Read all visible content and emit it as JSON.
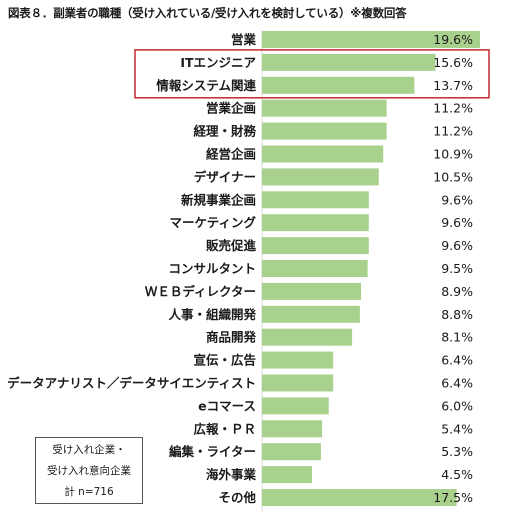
{
  "title": "図表８．副業者の職種（受け入れている/受け入れを検討している）※複数回答",
  "note": [
    "受け入れ企業・",
    "受け入れ意向企業",
    "計 n=716"
  ],
  "highlight_color": "#c0292e",
  "bar_color": "#a9d18e",
  "chart_data": {
    "type": "bar",
    "orientation": "horizontal",
    "categories": [
      "営業",
      "ITエンジニア",
      "情報システム関連",
      "営業企画",
      "経理・財務",
      "経営企画",
      "デザイナー",
      "新規事業企画",
      "マーケティング",
      "販売促進",
      "コンサルタント",
      "ＷＥＢディレクター",
      "人事・組織開発",
      "商品開発",
      "宣伝・広告",
      "データアナリスト／データサイエンティスト",
      "eコマース",
      "広報・ＰＲ",
      "編集・ライター",
      "海外事業",
      "その他"
    ],
    "values": [
      19.6,
      15.6,
      13.7,
      11.2,
      11.2,
      10.9,
      10.5,
      9.6,
      9.6,
      9.6,
      9.5,
      8.9,
      8.8,
      8.1,
      6.4,
      6.4,
      6.0,
      5.4,
      5.3,
      4.5,
      17.5
    ],
    "value_labels": [
      "19.6%",
      "15.6%",
      "13.7%",
      "11.2%",
      "11.2%",
      "10.9%",
      "10.5%",
      "9.6%",
      "9.6%",
      "9.6%",
      "9.5%",
      "8.9%",
      "8.8%",
      "8.1%",
      "6.4%",
      "6.4%",
      "6.0%",
      "5.4%",
      "5.3%",
      "4.5%",
      "17.5%"
    ],
    "highlighted": [
      "ITエンジニア",
      "情報システム関連"
    ],
    "xlim": [
      0,
      19.6
    ],
    "grid": false
  }
}
